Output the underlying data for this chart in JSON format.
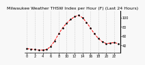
{
  "title": "Milwaukee Weather THSW Index per Hour (F) (Last 24 Hours)",
  "x": [
    0,
    1,
    2,
    3,
    4,
    5,
    6,
    7,
    8,
    9,
    10,
    11,
    12,
    13,
    14,
    15,
    16,
    17,
    18,
    19,
    20,
    21,
    22,
    23
  ],
  "y": [
    33,
    32,
    31,
    30,
    30,
    31,
    38,
    50,
    65,
    78,
    88,
    96,
    102,
    105,
    100,
    90,
    78,
    65,
    55,
    48,
    44,
    45,
    46,
    44
  ],
  "line_color": "#ff0000",
  "marker_color": "#000000",
  "bg_color": "#f8f8f8",
  "grid_color": "#aaaaaa",
  "title_color": "#000000",
  "ylim": [
    25,
    115
  ],
  "xlim": [
    -0.5,
    23.5
  ],
  "title_fontsize": 4.5,
  "tick_fontsize": 3.5
}
